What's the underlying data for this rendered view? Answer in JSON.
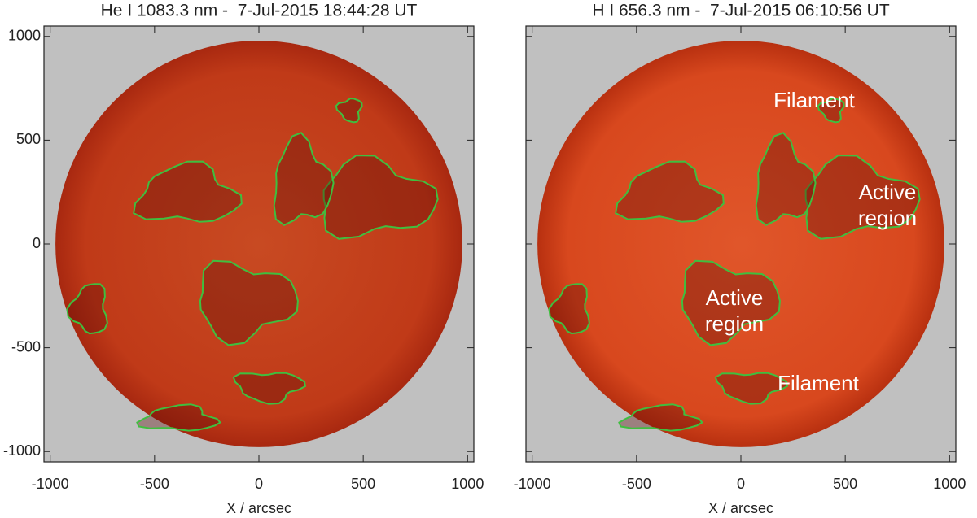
{
  "chart_data": [
    {
      "type": "image",
      "title": "He I 1083.3 nm -  7-Jul-2015 18:44:28 UT",
      "xlabel": "X / arcsec",
      "xlim": [
        -1030,
        1030
      ],
      "ylim": [
        -1050,
        1050
      ],
      "xticks": [
        -1000,
        -500,
        0,
        500,
        1000
      ],
      "yticks": [
        -1000,
        -500,
        0,
        500,
        1000
      ],
      "show_ytick_labels": true,
      "annotations": []
    },
    {
      "type": "image",
      "title": "H I 656.3 nm -  7-Jul-2015 06:10:56 UT",
      "xlabel": "X / arcsec",
      "xlim": [
        -1030,
        1030
      ],
      "ylim": [
        -1050,
        1050
      ],
      "xticks": [
        -1000,
        -500,
        0,
        500,
        1000
      ],
      "yticks": [
        -1000,
        -500,
        0,
        500,
        1000
      ],
      "show_ytick_labels": false,
      "annotations": [
        [
          "Filament"
        ],
        [
          "Active",
          "region"
        ],
        [
          "Active",
          "region"
        ],
        [
          "Filament"
        ]
      ]
    }
  ]
}
